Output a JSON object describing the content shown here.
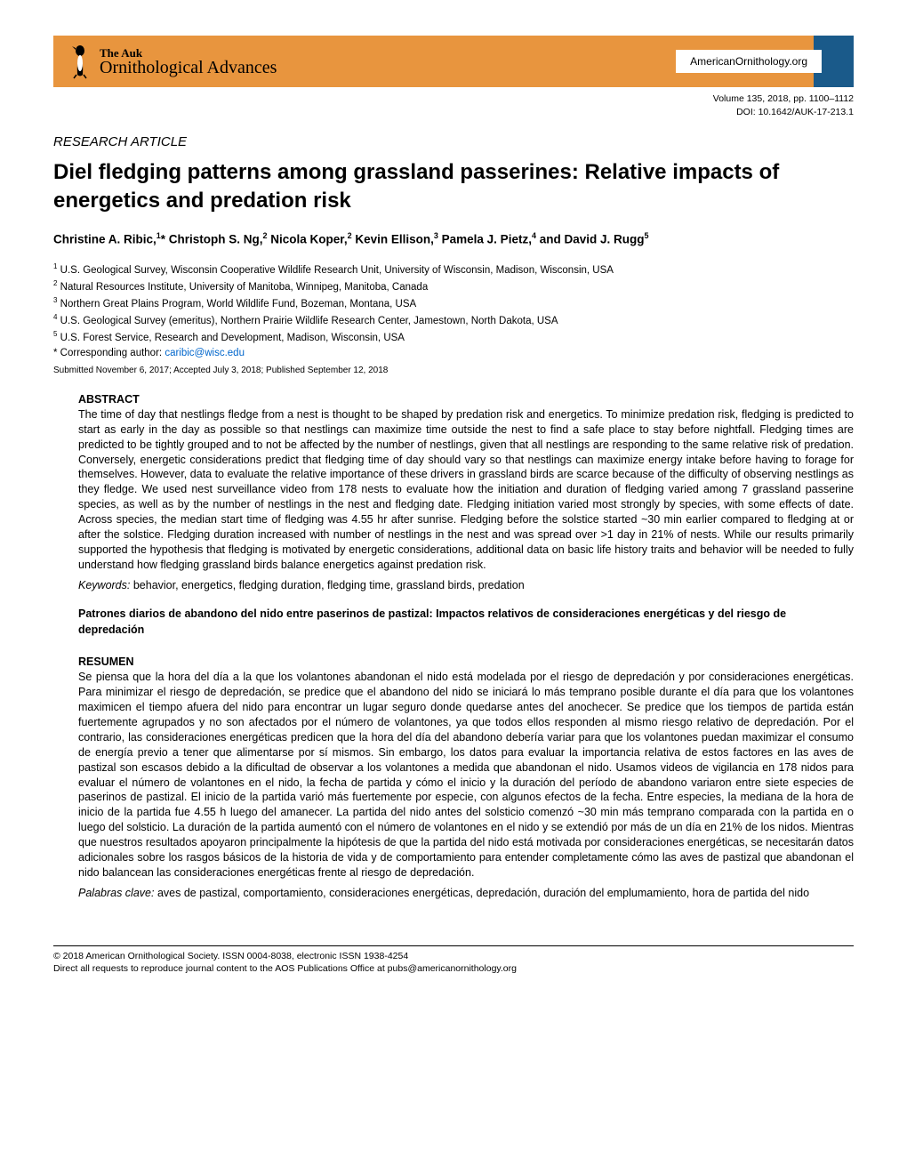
{
  "header": {
    "journal_top": "The Auk",
    "journal_bottom": "Ornithological Advances",
    "org_url": "AmericanOrnithology.org",
    "volume_line": "Volume 135, 2018, pp. 1100–1112",
    "doi_line": "DOI: 10.1642/AUK-17-213.1"
  },
  "article": {
    "type": "RESEARCH ARTICLE",
    "title": "Diel fledging patterns among grassland passerines: Relative impacts of energetics and predation risk",
    "authors_html": "Christine A. Ribic,<sup>1</sup>* Christoph S. Ng,<sup>2</sup> Nicola Koper,<sup>2</sup> Kevin Ellison,<sup>3</sup> Pamela J. Pietz,<sup>4</sup> and David J. Rugg<sup>5</sup>",
    "affiliations": [
      "<sup>1</sup> U.S. Geological Survey, Wisconsin Cooperative Wildlife Research Unit, University of Wisconsin, Madison, Wisconsin, USA",
      "<sup>2</sup> Natural Resources Institute, University of Manitoba, Winnipeg, Manitoba, Canada",
      "<sup>3</sup> Northern Great Plains Program, World Wildlife Fund, Bozeman, Montana, USA",
      "<sup>4</sup> U.S. Geological Survey (emeritus), Northern Prairie Wildlife Research Center, Jamestown, North Dakota, USA",
      "<sup>5</sup> U.S. Forest Service, Research and Development, Madison, Wisconsin, USA"
    ],
    "corresponding_label": "* Corresponding author: ",
    "corresponding_email": "caribic@wisc.edu",
    "dates": "Submitted November 6, 2017; Accepted July 3, 2018; Published September 12, 2018"
  },
  "abstract": {
    "label": "ABSTRACT",
    "body": "The time of day that nestlings fledge from a nest is thought to be shaped by predation risk and energetics. To minimize predation risk, fledging is predicted to start as early in the day as possible so that nestlings can maximize time outside the nest to find a safe place to stay before nightfall. Fledging times are predicted to be tightly grouped and to not be affected by the number of nestlings, given that all nestlings are responding to the same relative risk of predation. Conversely, energetic considerations predict that fledging time of day should vary so that nestlings can maximize energy intake before having to forage for themselves. However, data to evaluate the relative importance of these drivers in grassland birds are scarce because of the difficulty of observing nestlings as they fledge. We used nest surveillance video from 178 nests to evaluate how the initiation and duration of fledging varied among 7 grassland passerine species, as well as by the number of nestlings in the nest and fledging date. Fledging initiation varied most strongly by species, with some effects of date. Across species, the median start time of fledging was 4.55 hr after sunrise. Fledging before the solstice started ~30 min earlier compared to fledging at or after the solstice. Fledging duration increased with number of nestlings in the nest and was spread over >1 day in 21% of nests. While our results primarily supported the hypothesis that fledging is motivated by energetic considerations, additional data on basic life history traits and behavior will be needed to fully understand how fledging grassland birds balance energetics against predation risk.",
    "keywords_label": "Keywords:",
    "keywords": " behavior, energetics, fledging duration, fledging time, grassland birds, predation"
  },
  "spanish": {
    "title": "Patrones diarios de abandono del nido entre paserinos de pastizal: Impactos relativos de consideraciones energéticas y del riesgo de depredación",
    "label": "RESUMEN",
    "body": "Se piensa que la hora del día a la que los volantones abandonan el nido está modelada por el riesgo de depredación y por consideraciones energéticas. Para minimizar el riesgo de depredación, se predice que el abandono del nido se iniciará lo más temprano posible durante el día para que los volantones maximicen el tiempo afuera del nido para encontrar un lugar seguro donde quedarse antes del anochecer. Se predice que los tiempos de partida están fuertemente agrupados y no son afectados por el número de volantones, ya que todos ellos responden al mismo riesgo relativo de depredación. Por el contrario, las consideraciones energéticas predicen que la hora del día del abandono debería variar para que los volantones puedan maximizar el consumo de energía previo a tener que alimentarse por sí mismos. Sin embargo, los datos para evaluar la importancia relativa de estos factores en las aves de pastizal son escasos debido a la dificultad de observar a los volantones a medida que abandonan el nido. Usamos videos de vigilancia en 178 nidos para evaluar el número de volantones en el nido, la fecha de partida y cómo el inicio y la duración del período de abandono variaron entre siete especies de paserinos de pastizal. El inicio de la partida varió más fuertemente por especie, con algunos efectos de la fecha. Entre especies, la mediana de la hora de inicio de la partida fue 4.55 h luego del amanecer. La partida del nido antes del solsticio comenzó ~30 min más temprano comparada con la partida en o luego del solsticio. La duración de la partida aumentó con el número de volantones en el nido y se extendió por más de un día en 21% de los nidos. Mientras que nuestros resultados apoyaron principalmente la hipótesis de que la partida del nido está motivada por consideraciones energéticas, se necesitarán datos adicionales sobre los rasgos básicos de la historia de vida y de comportamiento para entender completamente cómo las aves de pastizal que abandonan el nido balancean las consideraciones energéticas frente al riesgo de depredación.",
    "palabras_label": "Palabras clave:",
    "palabras": " aves de pastizal, comportamiento, consideraciones energéticas, depredación, duración del emplumamiento, hora de partida del nido"
  },
  "footer": {
    "copyright": "© 2018 American Ornithological Society. ISSN 0004-8038, electronic ISSN 1938-4254",
    "permissions": "Direct all requests to reproduce journal content to the AOS Publications Office at pubs@americanornithology.org"
  },
  "colors": {
    "header_orange": "#e8953e",
    "blue_accent": "#1a5a8a",
    "link_blue": "#0066cc"
  }
}
